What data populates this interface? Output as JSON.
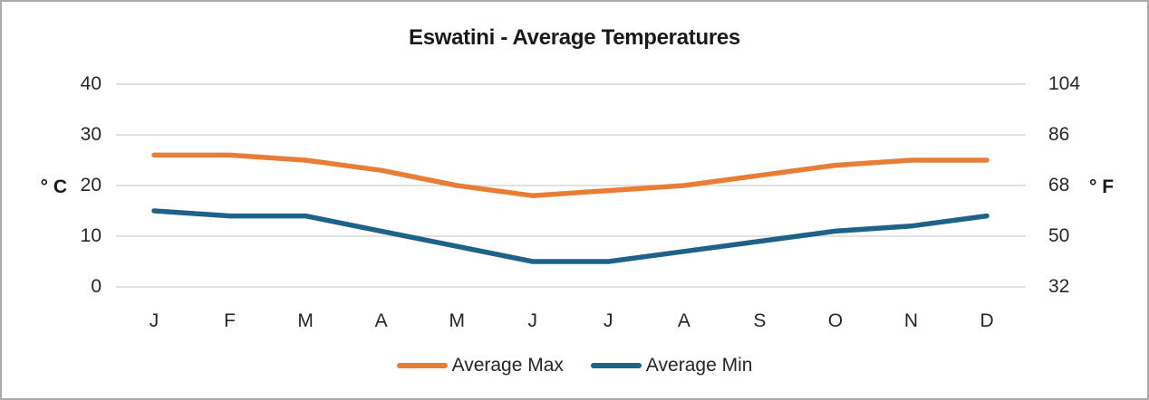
{
  "chart_data": {
    "type": "line",
    "title": "Eswatini - Average Temperatures",
    "categories": [
      "J",
      "F",
      "M",
      "A",
      "M",
      "J",
      "J",
      "A",
      "S",
      "O",
      "N",
      "D"
    ],
    "series": [
      {
        "name": "Average Max",
        "color": "#E87D35",
        "values": [
          26,
          26,
          25,
          23,
          20,
          18,
          19,
          20,
          22,
          24,
          25,
          25
        ]
      },
      {
        "name": "Average Min",
        "color": "#1F6287",
        "values": [
          15,
          14,
          14,
          11,
          8,
          5,
          5,
          7,
          9,
          11,
          12,
          14
        ]
      }
    ],
    "y_axis_left": {
      "label": "° C",
      "ticks": [
        "40",
        "30",
        "20",
        "10",
        "0"
      ],
      "range": [
        0,
        40
      ]
    },
    "y_axis_right": {
      "label": "° F",
      "ticks": [
        "104",
        "86",
        "68",
        "50",
        "32"
      ],
      "range": [
        32,
        104
      ]
    },
    "grid": true,
    "grid_color": "#D9D9D9",
    "text_color": "#262626",
    "legend_position": "bottom"
  }
}
